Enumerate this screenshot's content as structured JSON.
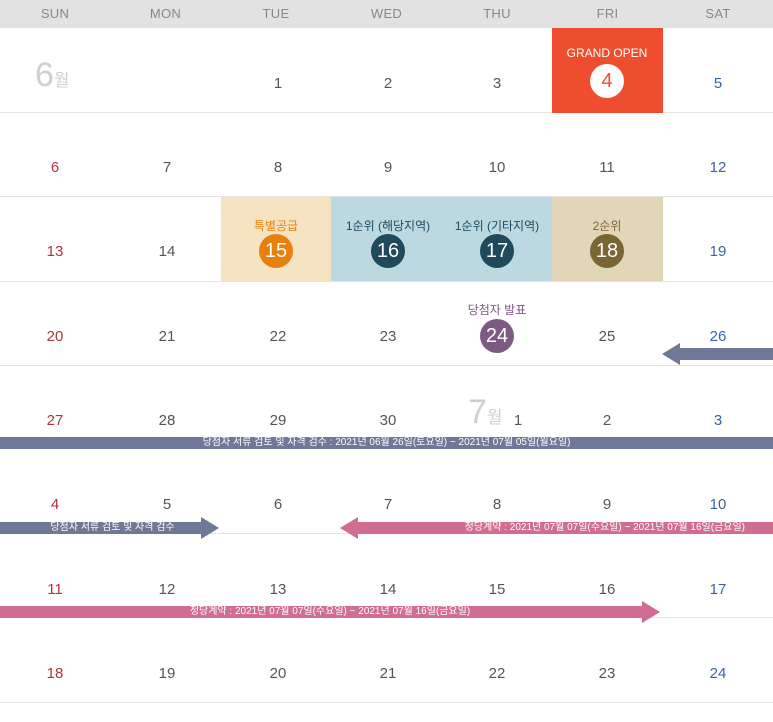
{
  "weekdays": [
    "SUN",
    "MON",
    "TUE",
    "WED",
    "THU",
    "FRI",
    "SAT"
  ],
  "month_june": {
    "num": "6",
    "unit": "월"
  },
  "month_july": {
    "num": "7",
    "unit": "월"
  },
  "week1": [
    "1",
    "2",
    "3",
    "5"
  ],
  "week2": [
    "6",
    "7",
    "8",
    "9",
    "10",
    "11",
    "12"
  ],
  "week3": [
    "13",
    "14",
    "19"
  ],
  "week4": [
    "20",
    "21",
    "22",
    "23",
    "25",
    "26"
  ],
  "week5": [
    "27",
    "28",
    "29",
    "30",
    "1",
    "2",
    "3"
  ],
  "week6": [
    "4",
    "5",
    "6",
    "7",
    "8",
    "9",
    "10"
  ],
  "week7": [
    "11",
    "12",
    "13",
    "14",
    "15",
    "16",
    "17"
  ],
  "week8": [
    "18",
    "19",
    "20",
    "21",
    "22",
    "23",
    "24"
  ],
  "events": {
    "grand_open": {
      "label": "GRAND OPEN",
      "day": "4"
    },
    "special": {
      "label": "특별공급",
      "day": "15"
    },
    "first_local": {
      "label": "1순위 (해당지역)",
      "day": "16"
    },
    "first_other": {
      "label": "1순위 (기타지역)",
      "day": "17"
    },
    "second": {
      "label": "2순위",
      "day": "18"
    },
    "winners": {
      "label": "당첨자 발표",
      "day": "24"
    }
  },
  "bars": {
    "review_full": "당첨자 서류 검토 및 자격 검수 : 2021년 06월 26일(토요일) ~ 2021년 07월 05일(월요일)",
    "review_short": "당첨자 서류 검토 및 자격 검수",
    "contract_w6": "정당계약 : 2021년 07월 07일(수요일) ~ 2021년 07월 16일(금요일)",
    "contract_w7": "정당계약 : 2021년 07월 07일(수요일) ~ 2021년 07월 16일(금요일)"
  },
  "colors": {
    "header_bg": "#e2e2e2",
    "sunday": "#b5323a",
    "saturday": "#3a62a8",
    "grand_open": "#ee4e2e",
    "special_bg": "#f5e3c2",
    "special": "#e8800c",
    "first_bg": "#bcd9e2",
    "first": "#1e4a5c",
    "second_bg": "#e2d6b8",
    "second": "#7a6535",
    "winners": "#7d5a82",
    "review_bar": "#6f7897",
    "contract_bar": "#d16d92"
  }
}
